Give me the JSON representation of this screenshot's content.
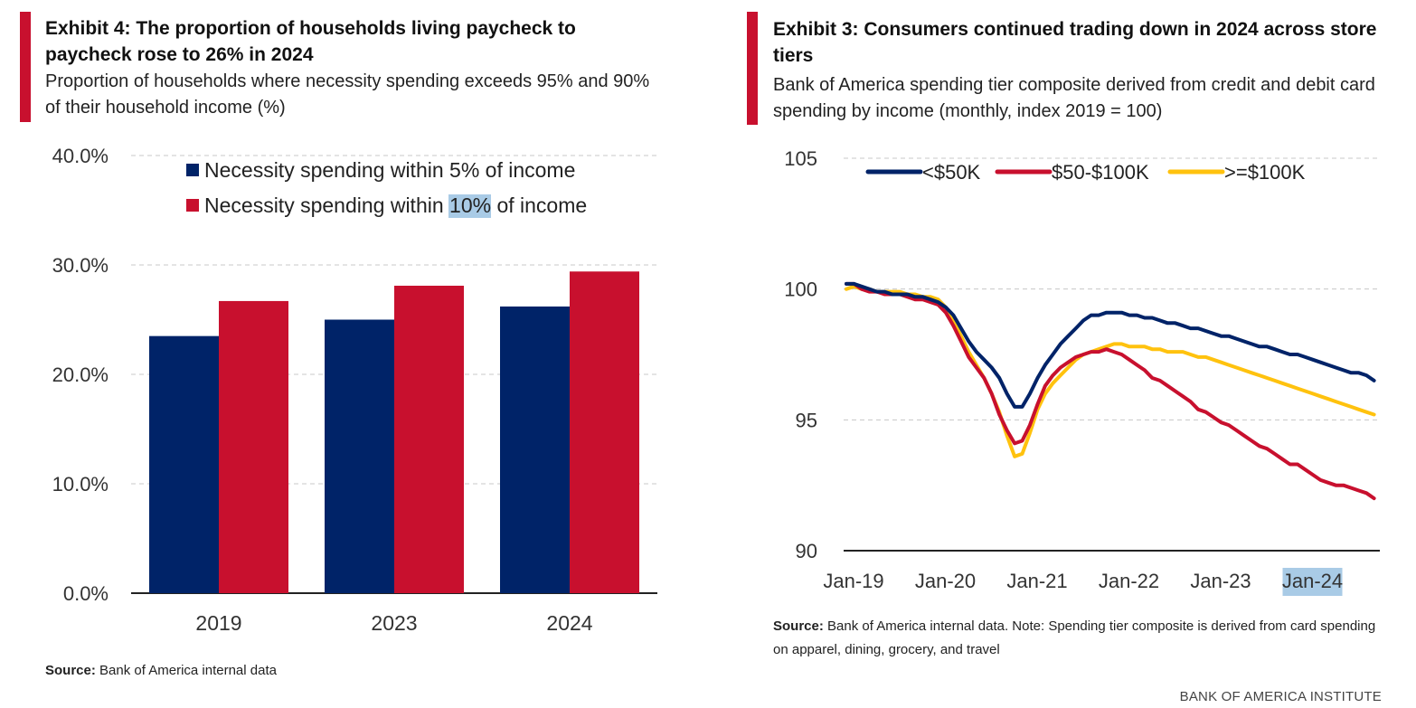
{
  "left": {
    "title": "Exhibit 4: The proportion of households living paycheck to paycheck rose to 26% in 2024",
    "subtitle": "Proportion of households where necessity spending exceeds 95% and 90% of their household income (%)",
    "source_label": "Source:",
    "source_text": " Bank of America internal data"
  },
  "right": {
    "title": "Exhibit 3: Consumers continued trading down in 2024 across store tiers",
    "subtitle": "Bank of America spending tier composite derived from credit and debit card spending by income (monthly, index 2019 = 100)",
    "source_label": "Source:",
    "source_text": " Bank of America internal data. Note: Spending tier composite is derived from card spending on apparel, dining, grocery, and travel"
  },
  "footer": "BANK OF AMERICA INSTITUTE",
  "colors": {
    "navy": "#002368",
    "red": "#c8102e",
    "gold": "#ffc20e",
    "accent": "#c8102e"
  },
  "chart_data": [
    {
      "type": "bar",
      "title": "Exhibit 4: The proportion of households living paycheck to paycheck rose to 26% in 2024",
      "categories": [
        "2019",
        "2023",
        "2024"
      ],
      "series": [
        {
          "name": "Necessity spending within 5% of income",
          "color": "#002368",
          "values": [
            23.5,
            25.0,
            26.2
          ]
        },
        {
          "name": "Necessity spending within 10% of income",
          "color": "#c8102e",
          "values": [
            26.7,
            28.1,
            29.4
          ]
        }
      ],
      "yticks": [
        "0.0%",
        "10.0%",
        "20.0%",
        "30.0%",
        "40.0%"
      ],
      "ylim": [
        0,
        40
      ],
      "grid": true,
      "legend": "top-center"
    },
    {
      "type": "line",
      "title": "Exhibit 3: Consumers continued trading down in 2024 across store tiers",
      "x_start": "2019-01",
      "x_ticks": [
        "Jan-19",
        "Jan-20",
        "Jan-21",
        "Jan-22",
        "Jan-23",
        "Jan-24"
      ],
      "yticks": [
        "90",
        "95",
        "100",
        "105"
      ],
      "ylim": [
        90,
        105
      ],
      "grid": true,
      "legend": "top-left",
      "series": [
        {
          "name": "<$50K",
          "color": "#002368",
          "values": [
            100.2,
            100.2,
            100.1,
            100.0,
            99.9,
            99.9,
            99.8,
            99.8,
            99.8,
            99.7,
            99.7,
            99.6,
            99.5,
            99.3,
            99.0,
            98.5,
            98.0,
            97.6,
            97.3,
            97.0,
            96.6,
            96.0,
            95.5,
            95.5,
            96.0,
            96.6,
            97.1,
            97.5,
            97.9,
            98.2,
            98.5,
            98.8,
            99.0,
            99.0,
            99.1,
            99.1,
            99.1,
            99.0,
            99.0,
            98.9,
            98.9,
            98.8,
            98.7,
            98.7,
            98.6,
            98.5,
            98.5,
            98.4,
            98.3,
            98.2,
            98.2,
            98.1,
            98.0,
            97.9,
            97.8,
            97.8,
            97.7,
            97.6,
            97.5,
            97.5,
            97.4,
            97.3,
            97.2,
            97.1,
            97.0,
            96.9,
            96.8,
            96.8,
            96.7,
            96.5
          ]
        },
        {
          "name": "$50-$100K",
          "color": "#c8102e",
          "values": [
            100.2,
            100.2,
            100.0,
            99.9,
            99.9,
            99.8,
            99.8,
            99.8,
            99.7,
            99.6,
            99.6,
            99.5,
            99.4,
            99.1,
            98.6,
            98.0,
            97.4,
            97.0,
            96.6,
            96.0,
            95.2,
            94.6,
            94.1,
            94.2,
            94.8,
            95.6,
            96.3,
            96.7,
            97.0,
            97.2,
            97.4,
            97.5,
            97.6,
            97.6,
            97.7,
            97.6,
            97.5,
            97.3,
            97.1,
            96.9,
            96.6,
            96.5,
            96.3,
            96.1,
            95.9,
            95.7,
            95.4,
            95.3,
            95.1,
            94.9,
            94.8,
            94.6,
            94.4,
            94.2,
            94.0,
            93.9,
            93.7,
            93.5,
            93.3,
            93.3,
            93.1,
            92.9,
            92.7,
            92.6,
            92.5,
            92.5,
            92.4,
            92.3,
            92.2,
            92.0
          ]
        },
        {
          "name": ">=$100K",
          "color": "#ffc20e",
          "values": [
            100.0,
            100.1,
            100.0,
            100.0,
            99.9,
            99.9,
            99.9,
            99.9,
            99.8,
            99.8,
            99.7,
            99.7,
            99.6,
            99.3,
            98.8,
            98.2,
            97.6,
            97.1,
            96.6,
            96.0,
            95.3,
            94.4,
            93.6,
            93.7,
            94.5,
            95.4,
            96.0,
            96.4,
            96.7,
            97.0,
            97.3,
            97.5,
            97.6,
            97.7,
            97.8,
            97.9,
            97.9,
            97.8,
            97.8,
            97.8,
            97.7,
            97.7,
            97.6,
            97.6,
            97.6,
            97.5,
            97.4,
            97.4,
            97.3,
            97.2,
            97.1,
            97.0,
            96.9,
            96.8,
            96.7,
            96.6,
            96.5,
            96.4,
            96.3,
            96.2,
            96.1,
            96.0,
            95.9,
            95.8,
            95.7,
            95.6,
            95.5,
            95.4,
            95.3,
            95.2
          ]
        }
      ]
    }
  ]
}
